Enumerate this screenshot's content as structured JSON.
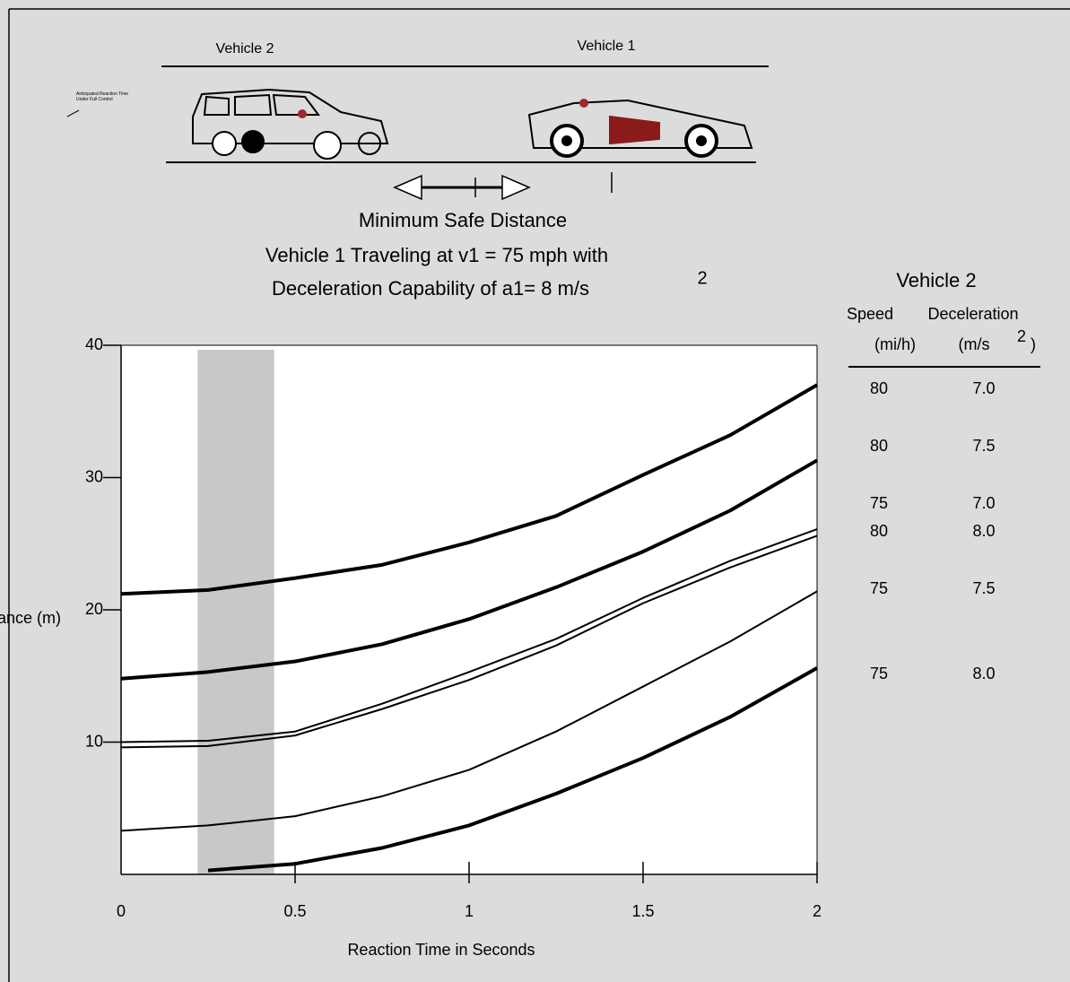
{
  "chart_data": {
    "type": "line",
    "illustration_labels": [
      "Vehicle 2",
      "Vehicle 1"
    ],
    "annotation": "Anticipated Reaction Time Under Full Control",
    "title": "Minimum Safe Distance",
    "subtitle_lines": [
      "Vehicle 1 Traveling at v1 = 75 mph with",
      "Deceleration Capability of  a1= 8 m/s"
    ],
    "subtitle_superscript": "2",
    "y_label": "Distance (m)",
    "x_label": "Reaction Time in Seconds",
    "x": [
      0,
      0.25,
      0.5,
      0.75,
      1,
      1.25,
      1.5,
      1.75,
      2
    ],
    "xlim": [
      0,
      2
    ],
    "xticks": [
      0,
      0.5,
      1,
      1.5,
      2
    ],
    "ylim": [
      0,
      40
    ],
    "yticks": [
      10,
      20,
      30,
      40
    ],
    "shaded_region": [
      0.22,
      0.44
    ],
    "legend_table": {
      "title": "Vehicle 2",
      "speed_header": "Speed",
      "decel_header": "Deceleration",
      "speed_unit": "(mi/h)",
      "decel_unit": "(m/s",
      "decel_unit_superscript": "2",
      "decel_unit_close": ")"
    },
    "series": [
      {
        "speed": "80",
        "deceleration": "7.0",
        "color": "#000000",
        "width": 4,
        "values": [
          21.2,
          21.5,
          22.4,
          23.4,
          25.1,
          27.1,
          30.2,
          33.2,
          37.0
        ]
      },
      {
        "speed": "80",
        "deceleration": "7.5",
        "color": "#000000",
        "width": 4,
        "values": [
          14.8,
          15.3,
          16.1,
          17.4,
          19.3,
          21.7,
          24.4,
          27.5,
          31.3
        ]
      },
      {
        "speed": "75",
        "deceleration": "7.0",
        "color": "#000000",
        "width": 2,
        "values": [
          10.0,
          10.1,
          10.8,
          12.9,
          15.3,
          17.8,
          20.9,
          23.7,
          26.1
        ]
      },
      {
        "speed": "80",
        "deceleration": "8.0",
        "color": "#000000",
        "width": 2,
        "values": [
          9.6,
          9.7,
          10.5,
          12.5,
          14.7,
          17.3,
          20.5,
          23.2,
          25.6
        ]
      },
      {
        "speed": "75",
        "deceleration": "7.5",
        "color": "#000000",
        "width": 2,
        "values": [
          3.3,
          3.7,
          4.4,
          5.9,
          7.9,
          10.8,
          14.2,
          17.6,
          21.4
        ]
      },
      {
        "speed": "75",
        "deceleration": "8.0",
        "color": "#000000",
        "width": 4,
        "values": [
          null,
          0.3,
          0.8,
          2.0,
          3.7,
          6.1,
          8.8,
          11.9,
          15.6
        ]
      }
    ]
  }
}
